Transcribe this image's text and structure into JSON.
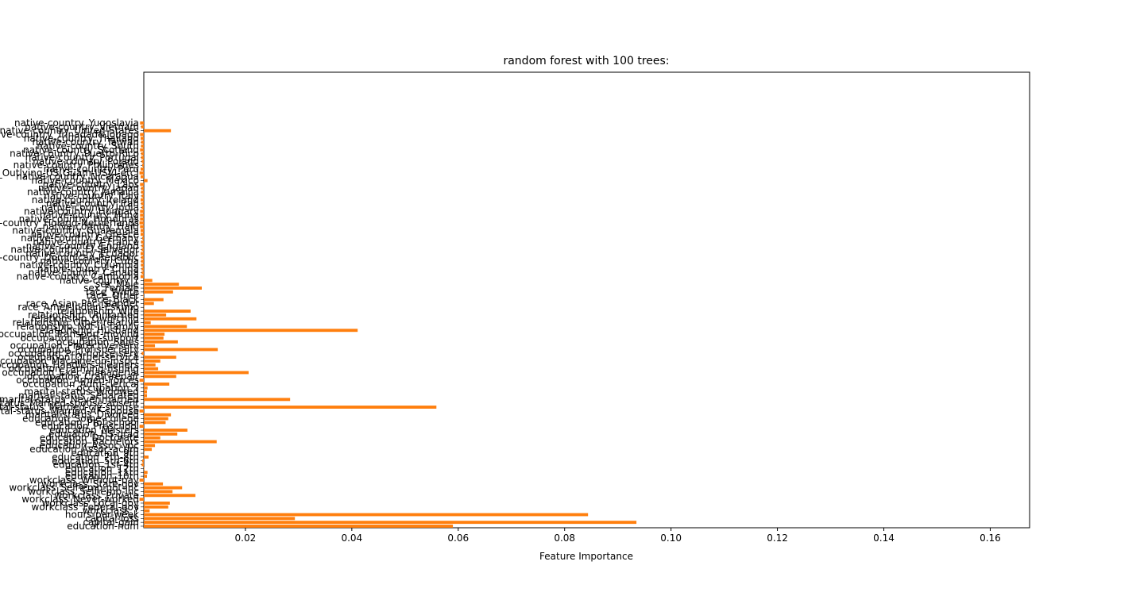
{
  "chart_data": {
    "type": "barh",
    "title": "random forest with 100 trees:",
    "x_label": "Feature Importance",
    "color": "#ff7f0e",
    "categories": [
      "education-num",
      "capital-gain",
      "capital-loss",
      "hours-per-week",
      "workclass_?",
      "workclass_Federal-gov",
      "workclass_Local-gov",
      "workclass_Never-worked",
      "workclass_Private",
      "workclass_Self-emp-inc",
      "workclass_Self-emp-not-inc",
      "workclass_State-gov",
      "workclass_Without-pay",
      "education_10th",
      "education_11th",
      "education_12th",
      "education_1st-4th",
      "education_5th-6th",
      "education_7th-8th",
      "education_9th",
      "education_Assoc-acdm",
      "education_Assoc-voc",
      "education_Bachelors",
      "education_Doctorate",
      "education_HS-grad",
      "education_Masters",
      "education_Preschool",
      "education_Prof-school",
      "education_Some-college",
      "marital-status_Divorced",
      "marital-status_Married-AF-spouse",
      "marital-status_Married-civ-spouse",
      "marital-status_Married-spouse-absent",
      "marital-status_Never-married",
      "marital-status_Separated",
      "marital-status_Widowed",
      "occupation_?",
      "occupation_Adm-clerical",
      "occupation_Armed-Forces",
      "occupation_Craft-repair",
      "occupation_Exec-managerial",
      "occupation_Farming-fishing",
      "occupation_Handlers-cleaners",
      "occupation_Machine-op-inspct",
      "occupation_Other-service",
      "occupation_Priv-house-serv",
      "occupation_Prof-specialty",
      "occupation_Protective-serv",
      "occupation_Sales",
      "occupation_Tech-support",
      "occupation_Transport-moving",
      "relationship_Husband",
      "relationship_Not-in-family",
      "relationship_Other-relative",
      "relationship_Own-child",
      "relationship_Unmarried",
      "relationship_Wife",
      "race_Amer-Indian-Eskimo",
      "race_Asian-Pac-Islander",
      "race_Black",
      "race_Other",
      "race_White",
      "sex_Female",
      "sex_Male",
      "native-country_?",
      "native-country_Cambodia",
      "native-country_Canada",
      "native-country_China",
      "native-country_Columbia",
      "native-country_Cuba",
      "native-country_Dominican-Republic",
      "native-country_Ecuador",
      "native-country_El-Salvador",
      "native-country_England",
      "native-country_France",
      "native-country_Germany",
      "native-country_Greece",
      "native-country_Guatemala",
      "native-country_Haiti",
      "native-country_Holand-Netherlands",
      "native-country_Honduras",
      "native-country_Hong",
      "native-country_Hungary",
      "native-country_India",
      "native-country_Iran",
      "native-country_Ireland",
      "native-country_Italy",
      "native-country_Jamaica",
      "native-country_Japan",
      "native-country_Laos",
      "native-country_Mexico",
      "native-country_Nicaragua",
      "native-country_Outlying-US(Guam-USVI-etc)",
      "native-country_Peru",
      "native-country_Philippines",
      "native-country_Poland",
      "native-country_Portugal",
      "native-country_Puerto-Rico",
      "native-country_Scotland",
      "native-country_South",
      "native-country_Taiwan",
      "native-country_Thailand",
      "native-country_Trinadad&Tobago",
      "native-country_United-States",
      "native-country_Vietnam",
      "native-country_Yugoslavia"
    ],
    "values": [
      0.059,
      0.0935,
      0.0293,
      0.0844,
      0.002,
      0.0055,
      0.0058,
      0.0001,
      0.0106,
      0.0063,
      0.0081,
      0.0045,
      0.0001,
      0.0015,
      0.0016,
      0.001,
      0.0005,
      0.0006,
      0.0018,
      0.001,
      0.0024,
      0.003,
      0.0146,
      0.004,
      0.0072,
      0.0091,
      0.0001,
      0.005,
      0.0055,
      0.006,
      0.0001,
      0.0559,
      0.001,
      0.0284,
      0.0015,
      0.0015,
      0.0016,
      0.0057,
      0.0001,
      0.007,
      0.0206,
      0.0036,
      0.0031,
      0.004,
      0.007,
      0.0005,
      0.0148,
      0.003,
      0.0073,
      0.0046,
      0.0048,
      0.0411,
      0.009,
      0.0022,
      0.0108,
      0.0051,
      0.0097,
      0.001,
      0.0028,
      0.0046,
      0.0008,
      0.0064,
      0.0118,
      0.0075,
      0.0025,
      0.0003,
      0.0005,
      0.0005,
      0.0004,
      0.0004,
      0.0004,
      0.0003,
      0.0005,
      0.0005,
      0.0004,
      0.0006,
      0.0003,
      0.0003,
      0.0002,
      0.0001,
      0.0002,
      0.0002,
      0.0002,
      0.0005,
      0.0004,
      0.0003,
      0.0005,
      0.0004,
      0.0004,
      0.0002,
      0.0016,
      0.0003,
      0.0001,
      0.0003,
      0.0006,
      0.0005,
      0.0004,
      0.0004,
      0.0002,
      0.0004,
      0.0004,
      0.0003,
      0.0002,
      0.006,
      0.0004,
      0.0002
    ],
    "xlim": [
      0.0009,
      0.1674
    ],
    "xticks": [
      0.02,
      0.04,
      0.06,
      0.08,
      {
        "value": 0.1,
        "label": "0.10"
      },
      0.12,
      0.14,
      0.16
    ]
  }
}
